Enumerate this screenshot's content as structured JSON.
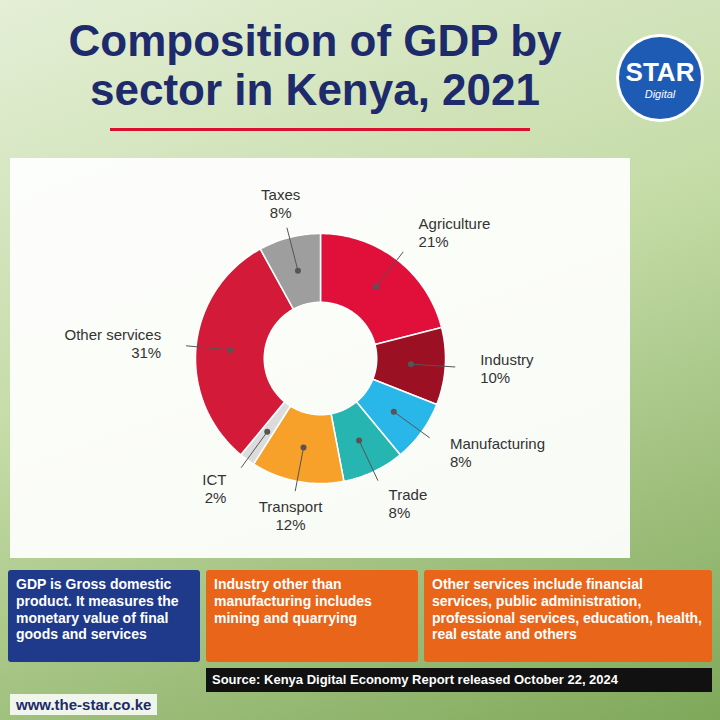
{
  "chart_data": {
    "type": "donut",
    "title": "Composition of GDP by sector in Kenya, 2021",
    "categories": [
      "Agriculture",
      "Industry",
      "Manufacturing",
      "Trade",
      "Transport",
      "ICT",
      "Other services",
      "Taxes"
    ],
    "values": [
      21,
      10,
      8,
      8,
      12,
      2,
      31,
      8
    ],
    "value_labels": [
      "21%",
      "10%",
      "8%",
      "8%",
      "12%",
      "2%",
      "31%",
      "8%"
    ],
    "colors": [
      "#e0103a",
      "#9b1023",
      "#29b6e8",
      "#26b5b0",
      "#f7a12a",
      "#dcdcdc",
      "#d31a38",
      "#9e9e9e"
    ],
    "data_labels": true,
    "tick_labels": false,
    "annotations": [
      "GDP is Gross domestic product. It measures the monetary value of final goods and services",
      "Industry other than manufacturing includes mining and quarrying",
      "Other services include financial services, public administration, professional services, education, health, real estate and others"
    ],
    "source": "Source: Kenya Digital Economy Report released October 22, 2024",
    "url": "www.the-star.co.ke",
    "logo": "STAR",
    "logo_subtitle": "Digital"
  }
}
